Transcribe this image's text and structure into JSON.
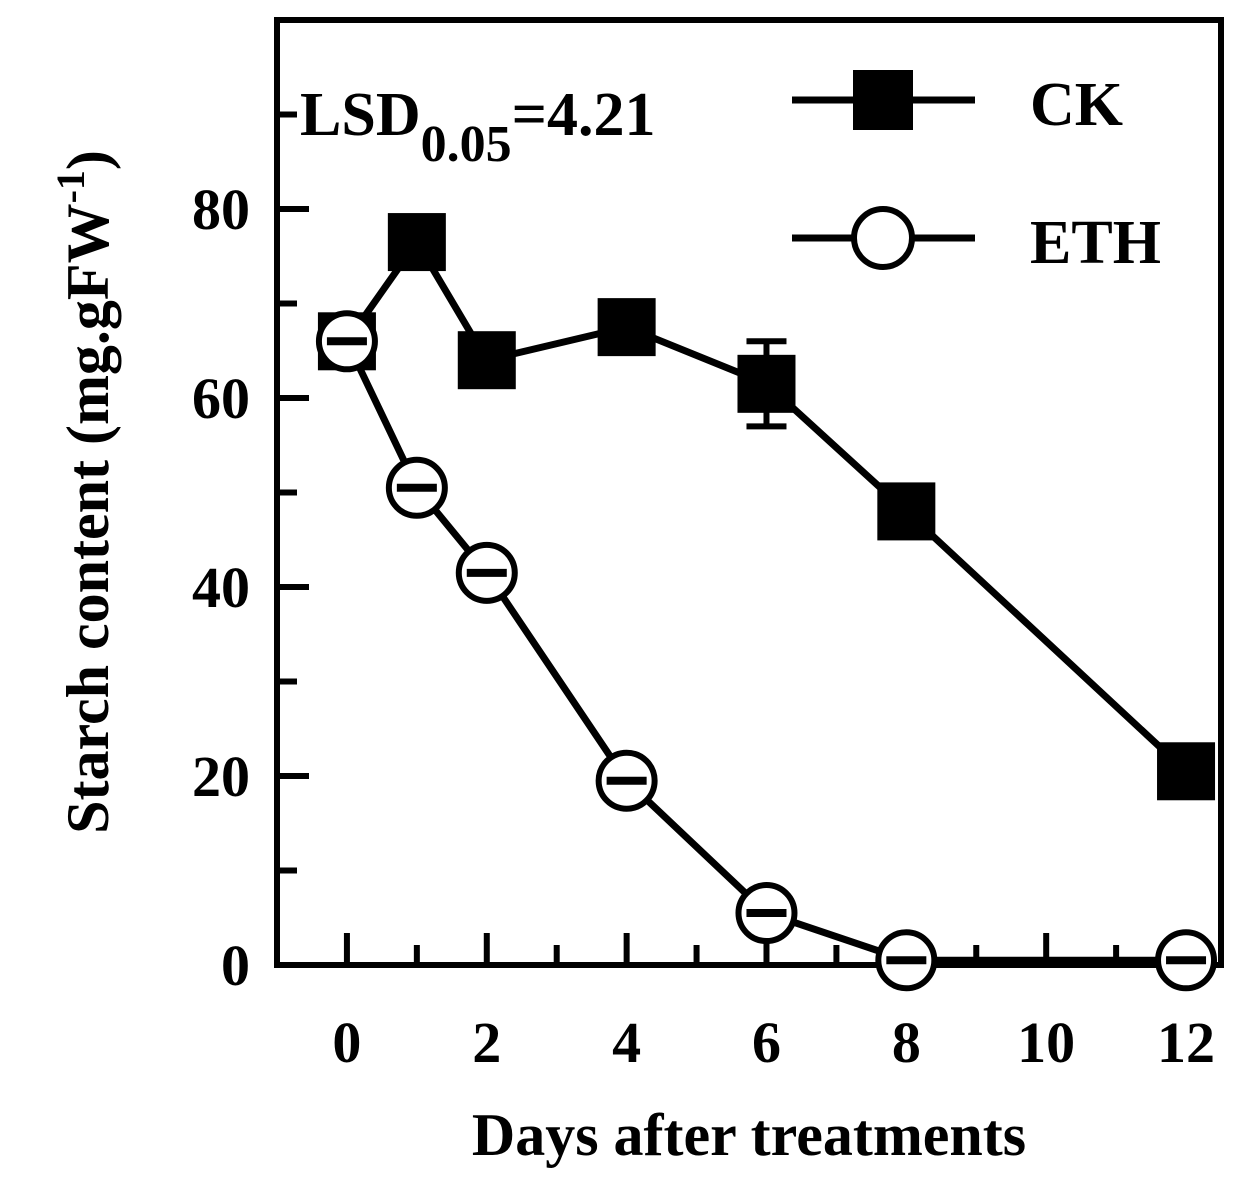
{
  "chart_data": {
    "type": "line",
    "xlabel": "Days after treatments",
    "ylabel": "Starch content (mg.gFW",
    "ylabel_sup": "-1",
    "ylabel_end": ")",
    "annotation": {
      "prefix": "LSD",
      "subscript": "0.05",
      "suffix": "=4.21"
    },
    "xlim": [
      -1,
      12.5
    ],
    "ylim": [
      0,
      100
    ],
    "xticks": [
      0,
      2,
      4,
      6,
      8,
      10,
      12
    ],
    "xtick_labels": [
      "0",
      "2",
      "4",
      "6",
      "8",
      "10",
      "12"
    ],
    "xminor_ticks": [
      1,
      3,
      5,
      7,
      9,
      11
    ],
    "yticks": [
      0,
      20,
      40,
      60,
      80
    ],
    "ytick_labels": [
      "0",
      "20",
      "40",
      "60",
      "80"
    ],
    "yminor_ticks": [
      10,
      30,
      50,
      70,
      90
    ],
    "legend_position": "top-right",
    "series": [
      {
        "name": "CK",
        "marker": "square-filled",
        "x": [
          0,
          1,
          2,
          4,
          6,
          8,
          12
        ],
        "values": [
          66,
          76.5,
          64,
          67.5,
          61.5,
          48,
          20.5
        ],
        "errors": [
          1.5,
          2,
          1.5,
          1.5,
          4.5,
          1.5,
          2
        ]
      },
      {
        "name": "ETH",
        "marker": "circle-open",
        "x": [
          0,
          1,
          2,
          4,
          6,
          8,
          12
        ],
        "values": [
          66,
          50.5,
          41.5,
          19.5,
          5.5,
          0.5,
          0.5
        ],
        "errors": [
          2,
          1.5,
          2,
          2,
          1.5,
          0.5,
          0.5
        ]
      }
    ]
  }
}
